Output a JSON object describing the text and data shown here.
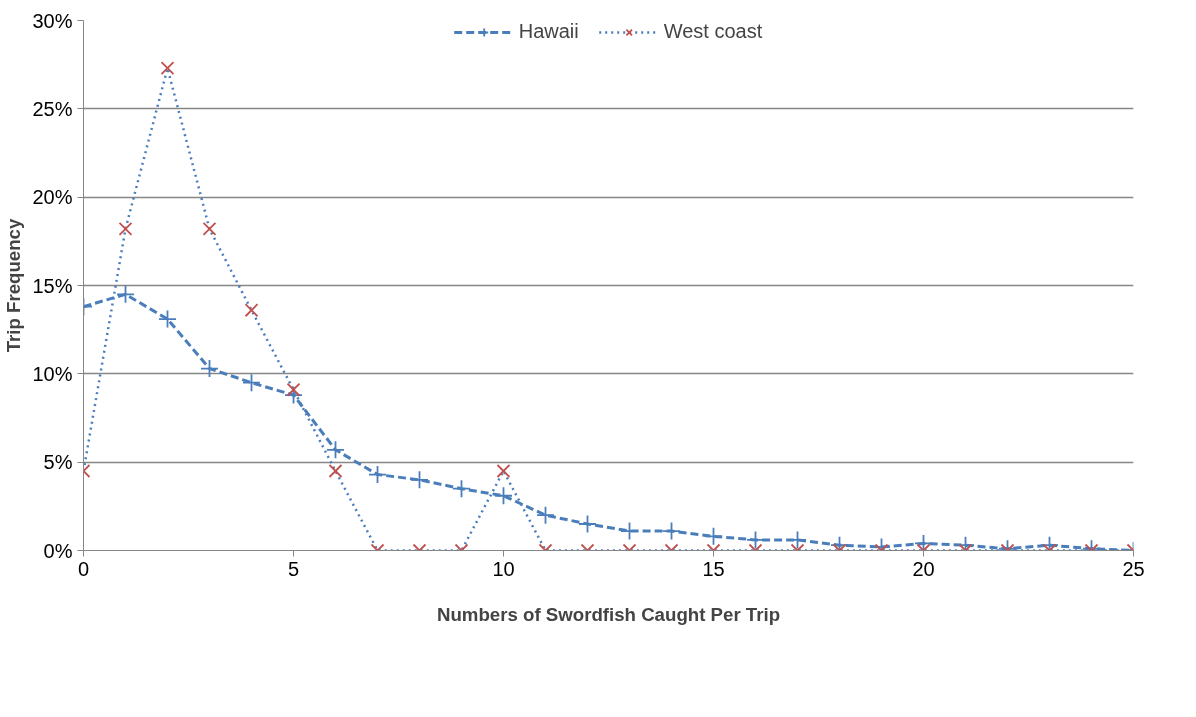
{
  "chart_data": {
    "type": "line",
    "xlabel": "Numbers of Swordfish Caught Per Trip",
    "ylabel": "Trip Frequency",
    "x": [
      0,
      1,
      2,
      3,
      4,
      5,
      6,
      7,
      8,
      9,
      10,
      11,
      12,
      13,
      14,
      15,
      16,
      17,
      18,
      19,
      20,
      21,
      22,
      23,
      24,
      25
    ],
    "series": [
      {
        "name": "Hawaii",
        "color": "#4a7ebb",
        "marker": "cross",
        "line_style": "dashed",
        "values": [
          13.8,
          14.5,
          13.1,
          10.3,
          9.5,
          8.8,
          5.7,
          4.3,
          4.0,
          3.5,
          3.1,
          2.0,
          1.5,
          1.1,
          1.1,
          0.8,
          0.6,
          0.6,
          0.3,
          0.2,
          0.4,
          0.3,
          0.1,
          0.3,
          0.1,
          0.0
        ]
      },
      {
        "name": "West coast",
        "color": "#4a7ebb",
        "colors": [
          "#c0504d",
          "#c0504d",
          "#c0504d",
          "#c0504d",
          "#c0504d",
          "#c0504d",
          "#c0504d",
          "#c0504d",
          "#c0504d",
          "#c0504d",
          "#c0504d",
          "#c0504d",
          "#c0504d",
          "#c0504d",
          "#c0504d",
          "#c0504d",
          "#c0504d",
          "#c0504d",
          "#c0504d",
          "#c0504d",
          "#c0504d",
          "#c0504d",
          "#c0504d",
          "#c0504d",
          "#c0504d",
          "#c0504d"
        ],
        "marker": "x",
        "line_style": "dotted",
        "values": [
          4.5,
          18.2,
          27.3,
          18.2,
          13.6,
          9.1,
          4.5,
          0,
          0,
          0,
          4.5,
          0,
          0,
          0,
          0,
          0,
          0,
          0,
          0,
          0,
          0,
          0,
          0,
          0,
          0,
          0
        ]
      }
    ],
    "xlim": [
      0,
      25
    ],
    "xticks": [
      0,
      5,
      10,
      15,
      20,
      25
    ],
    "ylim": [
      0,
      30
    ],
    "yticks": [
      {
        "value": 0,
        "label": "0%"
      },
      {
        "value": 5,
        "label": "5%"
      },
      {
        "value": 10,
        "label": "10%"
      },
      {
        "value": 15,
        "label": "15%"
      },
      {
        "value": 20,
        "label": "20%"
      },
      {
        "value": 25,
        "label": "25%"
      },
      {
        "value": 30,
        "label": "30%"
      }
    ],
    "grid": "y",
    "legend": "top"
  }
}
